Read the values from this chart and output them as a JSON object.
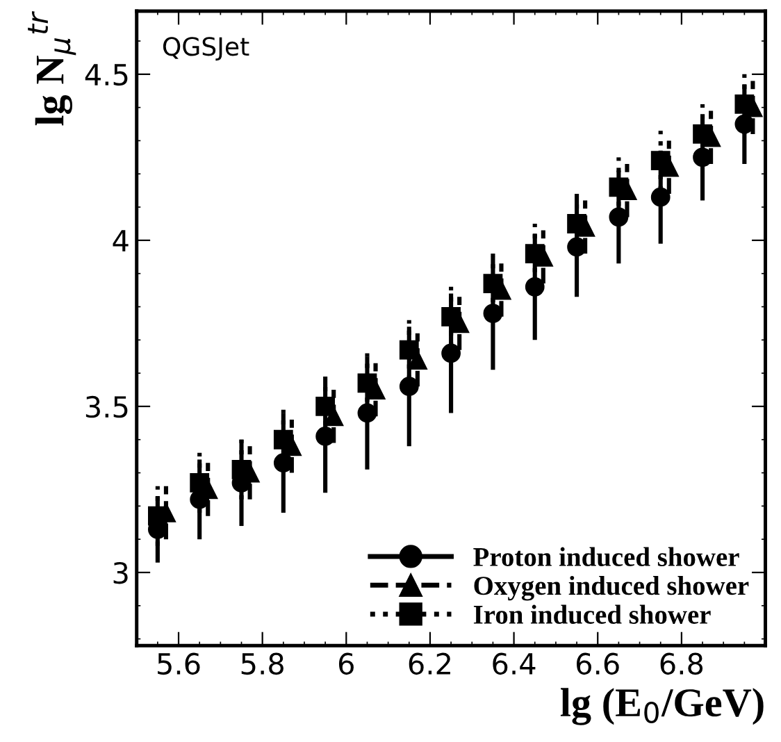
{
  "chart_data": {
    "type": "scatter",
    "xlabel": "lg (E$_{0}$/GeV)",
    "ylabel": "lg N$_{μ}$$^{tr}$",
    "annotations": [
      "QGSJet"
    ],
    "x": [
      5.55,
      5.65,
      5.75,
      5.85,
      5.95,
      6.05,
      6.15,
      6.25,
      6.35,
      6.45,
      6.55,
      6.65,
      6.75,
      6.85,
      6.95
    ],
    "series": [
      {
        "name": "Proton induced shower",
        "color": "#000000",
        "marker": "circle",
        "line_style": "solid",
        "values": [
          3.13,
          3.22,
          3.27,
          3.33,
          3.41,
          3.48,
          3.56,
          3.66,
          3.78,
          3.86,
          3.98,
          4.07,
          4.13,
          4.25,
          4.35
        ],
        "errors": [
          0.1,
          0.12,
          0.13,
          0.15,
          0.17,
          0.17,
          0.18,
          0.18,
          0.17,
          0.16,
          0.15,
          0.14,
          0.14,
          0.13,
          0.12
        ]
      },
      {
        "name": "Oxygen induced shower",
        "x": [
          5.57,
          5.67,
          5.77,
          5.87,
          5.97,
          6.07,
          6.17,
          6.27,
          6.37,
          6.47,
          6.57,
          6.67,
          6.77,
          6.87,
          6.97
        ],
        "color": "#000000",
        "marker": "triangle",
        "line_style": "dashed",
        "values": [
          3.18,
          3.25,
          3.3,
          3.38,
          3.47,
          3.55,
          3.64,
          3.75,
          3.85,
          3.95,
          4.04,
          4.15,
          4.22,
          4.31,
          4.4
        ],
        "errors": [
          0.08,
          0.08,
          0.08,
          0.08,
          0.08,
          0.08,
          0.08,
          0.08,
          0.08,
          0.08,
          0.08,
          0.08,
          0.08,
          0.08,
          0.08
        ]
      },
      {
        "name": "Iron induced shower",
        "color": "#000000",
        "marker": "square",
        "line_style": "dotted",
        "values": [
          3.17,
          3.27,
          3.31,
          3.4,
          3.5,
          3.57,
          3.67,
          3.77,
          3.87,
          3.96,
          4.05,
          4.16,
          4.24,
          4.32,
          4.41
        ],
        "errors": [
          0.09,
          0.09,
          0.09,
          0.09,
          0.09,
          0.09,
          0.09,
          0.09,
          0.09,
          0.09,
          0.09,
          0.09,
          0.09,
          0.09,
          0.09
        ]
      }
    ],
    "xlim": [
      5.5,
      7.0
    ],
    "ylim": [
      2.78,
      4.69
    ],
    "xticks": [
      5.6,
      5.8,
      6,
      6.2,
      6.4,
      6.6,
      6.8
    ],
    "yticks": [
      3,
      3.5,
      4,
      4.5
    ],
    "legend": "bottom right",
    "grid": false
  }
}
